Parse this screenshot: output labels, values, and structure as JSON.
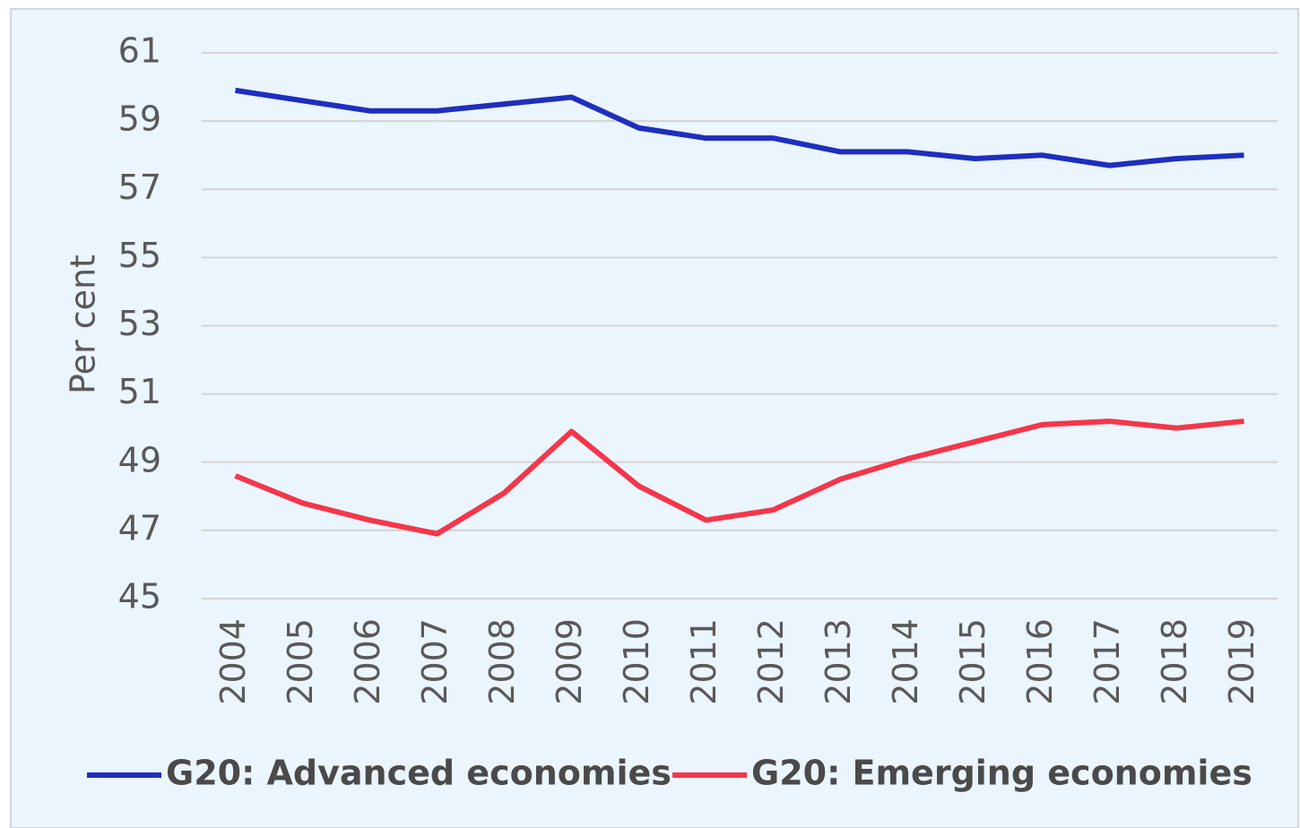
{
  "chart_data": {
    "type": "line",
    "y_label": "Per cent",
    "categories": [
      "2004",
      "2005",
      "2006",
      "2007",
      "2008",
      "2009",
      "2010",
      "2011",
      "2012",
      "2013",
      "2014",
      "2015",
      "2016",
      "2017",
      "2018",
      "2019"
    ],
    "series": [
      {
        "name": "G20: Advanced economies",
        "color": "#1f2ebf",
        "values": [
          59.9,
          59.6,
          59.3,
          59.3,
          59.5,
          59.7,
          58.8,
          58.5,
          58.5,
          58.1,
          58.1,
          57.9,
          58.0,
          57.7,
          57.9,
          58.0
        ]
      },
      {
        "name": "G20: Emerging economies",
        "color": "#f5364a",
        "values": [
          48.6,
          47.8,
          47.3,
          46.9,
          48.1,
          49.9,
          48.3,
          47.3,
          47.6,
          48.5,
          49.1,
          49.6,
          50.1,
          50.2,
          50.0,
          50.2
        ]
      }
    ],
    "ylim": [
      45,
      61
    ],
    "yticks": [
      45,
      47,
      49,
      51,
      53,
      55,
      57,
      59,
      61
    ],
    "grid": true,
    "legend": "bottom"
  }
}
